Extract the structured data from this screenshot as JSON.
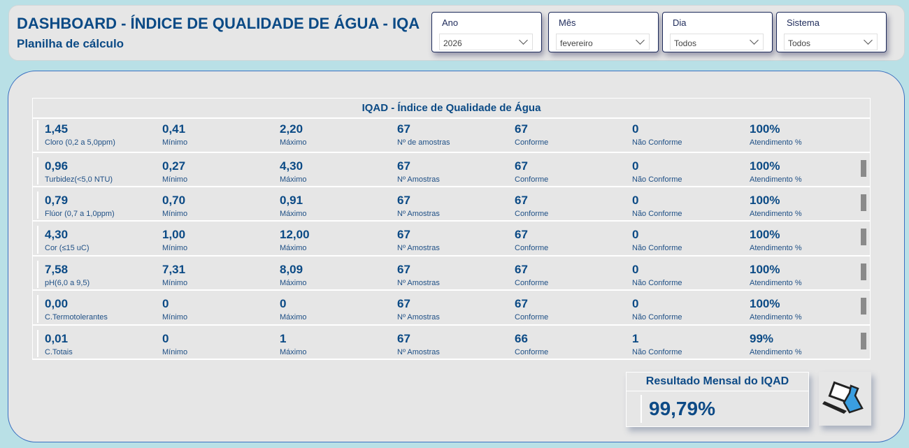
{
  "header": {
    "title": "DASHBOARD - ÍNDICE DE QUALIDADE DE ÁGUA - IQA",
    "subtitle": "Planilha de cálculo"
  },
  "filters": [
    {
      "label": "Ano",
      "value": "2026"
    },
    {
      "label": "Mês",
      "value": "fevereiro"
    },
    {
      "label": "Dia",
      "value": "Todos"
    },
    {
      "label": "Sistema",
      "value": "Todos"
    }
  ],
  "table": {
    "title": "IQAD - Índice de Qualidade de Água",
    "rows": [
      {
        "cells": [
          [
            "1,45",
            "Cloro (0,2 a 5,0ppm)"
          ],
          [
            "0,41",
            "Mínimo"
          ],
          [
            "2,20",
            "Máximo"
          ],
          [
            "67",
            "Nº de amostras"
          ],
          [
            "67",
            "Conforme"
          ],
          [
            "0",
            "Não Conforme"
          ],
          [
            "100%",
            "Atendimento %"
          ]
        ]
      },
      {
        "cells": [
          [
            "0,96",
            "Turbidez(<5,0 NTU)"
          ],
          [
            "0,27",
            "Mínimo"
          ],
          [
            "4,30",
            "Máximo"
          ],
          [
            "67",
            "Nº Amostras"
          ],
          [
            "67",
            "Conforme"
          ],
          [
            "0",
            "Não Conforme"
          ],
          [
            "100%",
            "Atendimento %"
          ]
        ]
      },
      {
        "cells": [
          [
            "0,79",
            "Flúor (0,7 a 1,0ppm)"
          ],
          [
            "0,70",
            "Mínimo"
          ],
          [
            "0,91",
            "Máximo"
          ],
          [
            "67",
            "Nº Amostras"
          ],
          [
            "67",
            "Conforme"
          ],
          [
            "0",
            "Não Conforme"
          ],
          [
            "100%",
            "Atendimento %"
          ]
        ]
      },
      {
        "cells": [
          [
            "4,30",
            "Cor (≤15 uC)"
          ],
          [
            "1,00",
            "Mínimo"
          ],
          [
            "12,00",
            "Máximo"
          ],
          [
            "67",
            "Nº Amostras"
          ],
          [
            "67",
            "Conforme"
          ],
          [
            "0",
            "Não Conforme"
          ],
          [
            "100%",
            "Atendimento %"
          ]
        ]
      },
      {
        "cells": [
          [
            "7,58",
            "pH(6,0 a 9,5)"
          ],
          [
            "7,31",
            "Mínimo"
          ],
          [
            "8,09",
            "Máximo"
          ],
          [
            "67",
            "Nº Amostras"
          ],
          [
            "67",
            "Conforme"
          ],
          [
            "0",
            "Não Conforme"
          ],
          [
            "100%",
            "Atendimento %"
          ]
        ]
      },
      {
        "cells": [
          [
            "0,00",
            "C.Termotolerantes"
          ],
          [
            "0",
            "Mínimo"
          ],
          [
            "0",
            "Máximo"
          ],
          [
            "67",
            "Nº Amostras"
          ],
          [
            "67",
            "Conforme"
          ],
          [
            "0",
            "Não Conforme"
          ],
          [
            "100%",
            "Atendimento %"
          ]
        ]
      },
      {
        "cells": [
          [
            "0,01",
            "C.Totais"
          ],
          [
            "0",
            "Mínimo"
          ],
          [
            "1",
            "Máximo"
          ],
          [
            "67",
            "Nº Amostras"
          ],
          [
            "66",
            "Conforme"
          ],
          [
            "1",
            "Não Conforme"
          ],
          [
            "99%",
            "Atendimento %"
          ]
        ]
      }
    ]
  },
  "result": {
    "title": "Resultado Mensal do IQAD",
    "value": "99,79%"
  }
}
